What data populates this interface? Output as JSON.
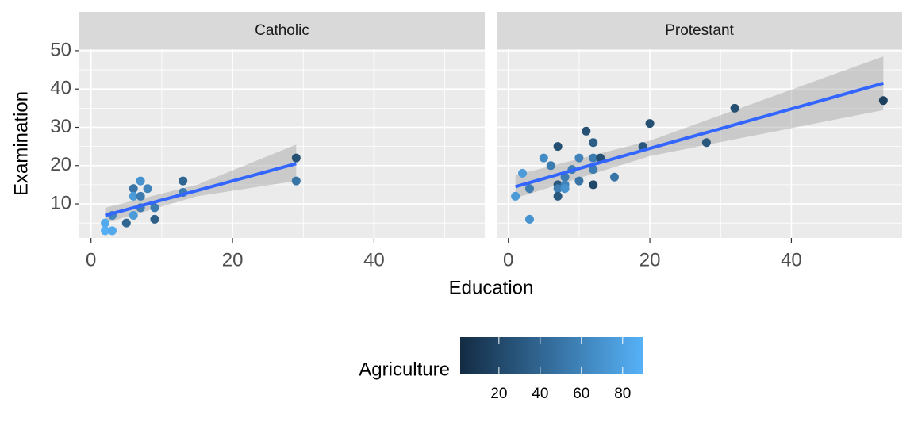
{
  "chart_data": {
    "type": "scatter",
    "x_label": "Education",
    "y_label": "Examination",
    "xlim": [
      -1.65,
      55.65
    ],
    "xticks": [
      0,
      20,
      40
    ],
    "ylim": [
      1.1,
      50.4
    ],
    "yticks": [
      10,
      20,
      30,
      40,
      50
    ],
    "grid": true,
    "smooth_color": "#3366ff",
    "band_color": "#999999",
    "colorbar": {
      "title": "Agriculture",
      "lim": [
        1.2,
        89.7
      ],
      "ticks": [
        20,
        40,
        60,
        80
      ],
      "low": "#132b43",
      "high": "#56b1f7"
    },
    "facets": [
      {
        "title": "Catholic",
        "x": [
          2,
          2,
          3,
          3,
          5,
          6,
          6,
          6,
          7,
          7,
          7,
          8,
          9,
          9,
          13,
          13,
          29,
          29
        ],
        "values": [
          5,
          3,
          3,
          7,
          5,
          14,
          12,
          7,
          16,
          12,
          9,
          14,
          9,
          6,
          16,
          13,
          22,
          16
        ],
        "agriculture": [
          85,
          88,
          85,
          60,
          40,
          50,
          75,
          75,
          70,
          55,
          55,
          60,
          55,
          35,
          40,
          55,
          25,
          50
        ],
        "smooth": {
          "x": [
            2,
            15,
            29
          ],
          "values": [
            7,
            13.5,
            20.5
          ],
          "lower": [
            5,
            12,
            16
          ],
          "upper": [
            9,
            15,
            25.5
          ]
        }
      },
      {
        "title": "Protestant",
        "x": [
          1,
          2,
          3,
          3,
          5,
          6,
          7,
          7,
          7,
          7,
          8,
          8,
          8,
          9,
          10,
          10,
          11,
          12,
          12,
          12,
          12,
          13,
          15,
          19,
          20,
          28,
          32,
          53
        ],
        "values": [
          12,
          18,
          14,
          6,
          22,
          20,
          25,
          15,
          14,
          12,
          17,
          15,
          14,
          19,
          22,
          16,
          29,
          26,
          22,
          19,
          15,
          22,
          17,
          25,
          31,
          26,
          35,
          37
        ],
        "agriculture": [
          75,
          75,
          55,
          70,
          65,
          55,
          25,
          30,
          55,
          30,
          55,
          60,
          70,
          55,
          60,
          50,
          25,
          35,
          55,
          55,
          20,
          25,
          50,
          30,
          25,
          30,
          25,
          15
        ],
        "smooth": {
          "x": [
            1,
            20,
            53
          ],
          "values": [
            14.5,
            24.5,
            41.5
          ],
          "lower": [
            11.5,
            22.5,
            34.5
          ],
          "upper": [
            17.5,
            26.5,
            48.5
          ]
        }
      }
    ]
  }
}
